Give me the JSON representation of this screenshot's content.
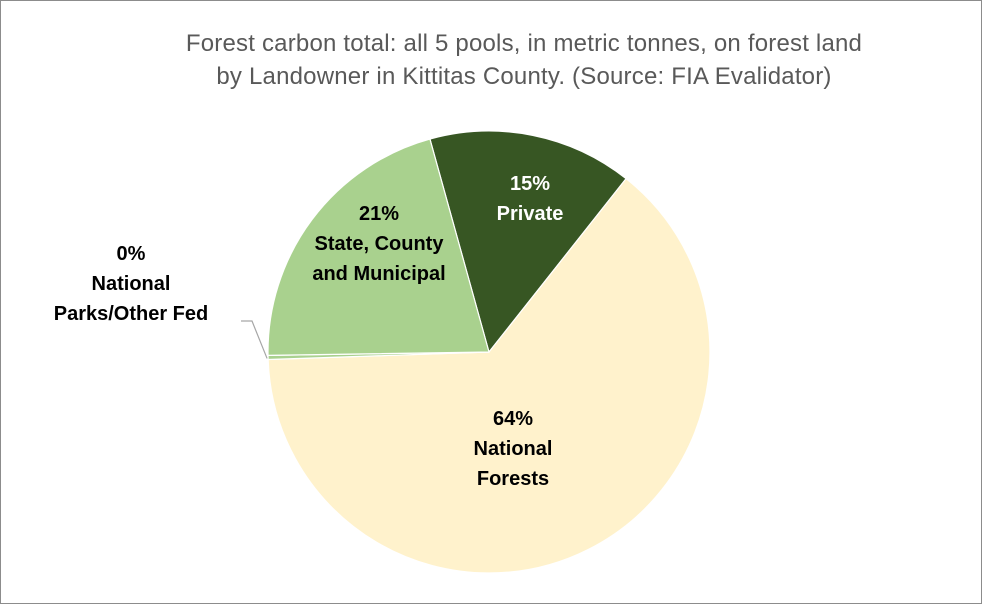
{
  "chart_data": {
    "type": "pie",
    "title_line1": "Forest carbon total: all 5 pools, in metric tonnes, on forest land",
    "title_line2": "by Landowner in Kittitas County. (Source: FIA Evalidator)",
    "slices": [
      {
        "label_pct": "15%",
        "label_name": [
          "Private"
        ],
        "value": 15,
        "color": "#375623",
        "text_color": "#ffffff"
      },
      {
        "label_pct": "64%",
        "label_name": [
          "National",
          "Forests"
        ],
        "value": 64,
        "color": "#fff2cc",
        "text_color": "#000000"
      },
      {
        "label_pct": "0%",
        "label_name": [
          "National",
          "Parks/Other Fed"
        ],
        "value": 0.3,
        "color": "#a9d18e",
        "text_color": "#000000"
      },
      {
        "label_pct": "21%",
        "label_name": [
          "State, County",
          "and Municipal"
        ],
        "value": 21,
        "color": "#a9d18e",
        "text_color": "#000000"
      }
    ]
  }
}
